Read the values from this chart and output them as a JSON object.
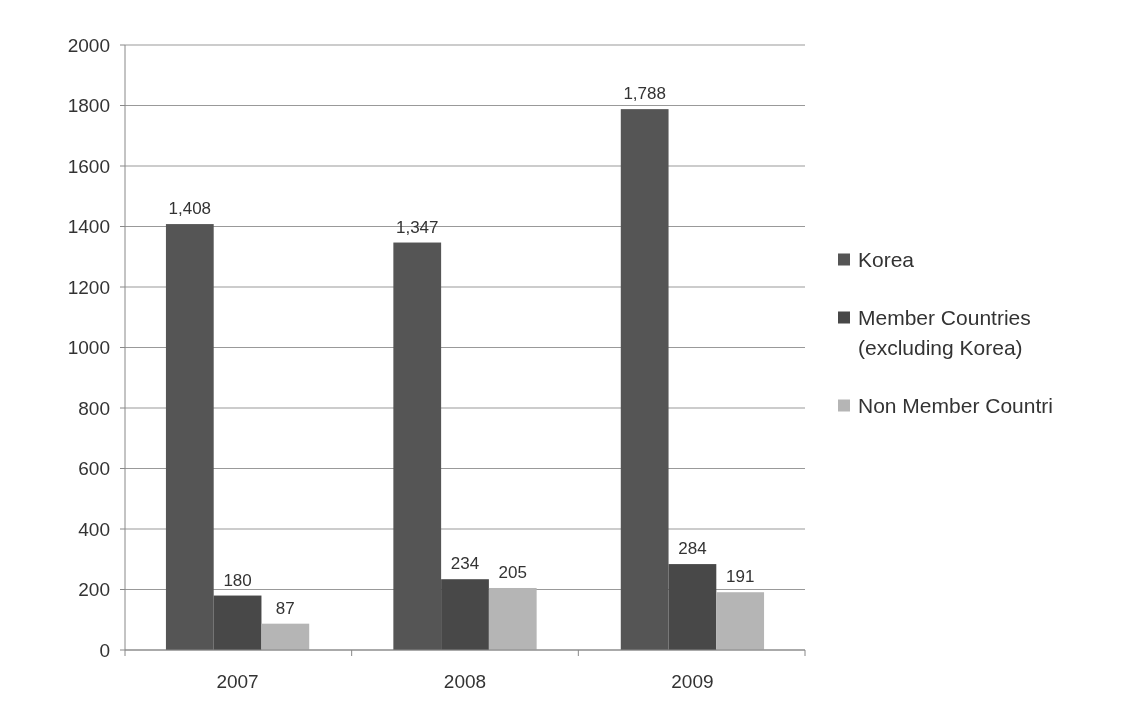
{
  "chart_data": {
    "type": "bar",
    "categories": [
      "2007",
      "2008",
      "2009"
    ],
    "series": [
      {
        "name": "Korea",
        "color": "#555555",
        "values": [
          1408,
          1347,
          1788
        ],
        "value_labels": [
          "1,408",
          "1,347",
          "1,788"
        ]
      },
      {
        "name": "Member Countries (excluding Korea)",
        "color": "#484848",
        "values": [
          180,
          234,
          284
        ],
        "value_labels": [
          "180",
          "234",
          "284"
        ]
      },
      {
        "name": "Non Member Countri",
        "color": "#b5b5b5",
        "values": [
          87,
          205,
          191
        ],
        "value_labels": [
          "87",
          "205",
          "191"
        ]
      }
    ],
    "ylim": [
      0,
      2000
    ],
    "yticks": [
      0,
      200,
      400,
      600,
      800,
      1000,
      1200,
      1400,
      1600,
      1800,
      2000
    ],
    "grid": "y",
    "legend": "right"
  }
}
